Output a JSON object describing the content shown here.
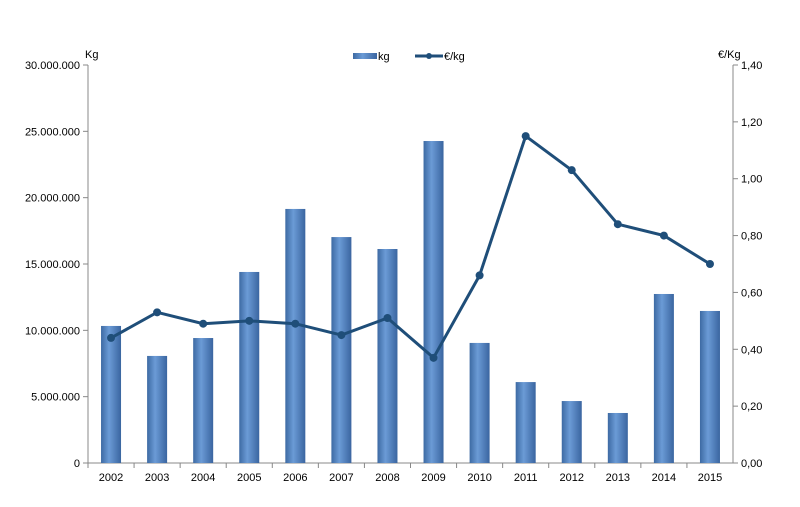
{
  "chart_data": {
    "type": "bar+line",
    "title": "",
    "categories": [
      "2002",
      "2003",
      "2004",
      "2005",
      "2006",
      "2007",
      "2008",
      "2009",
      "2010",
      "2011",
      "2012",
      "2013",
      "2014",
      "2015"
    ],
    "series": [
      {
        "name": "kg",
        "type": "bar",
        "axis": "left",
        "color": "#4f81bd",
        "values": [
          10330000,
          8070000,
          9420000,
          14400000,
          19150000,
          17030000,
          16130000,
          24270000,
          9050000,
          6100000,
          4670000,
          3770000,
          12740000,
          11460000
        ]
      },
      {
        "name": "€/kg",
        "type": "line",
        "axis": "right",
        "color": "#1f4e79",
        "values": [
          0.44,
          0.53,
          0.49,
          0.5,
          0.49,
          0.45,
          0.51,
          0.37,
          0.66,
          1.15,
          1.03,
          0.84,
          0.8,
          0.7
        ]
      }
    ],
    "ylabel": "Kg",
    "y2label": "€/Kg",
    "ylim": [
      0,
      30000000
    ],
    "y2lim": [
      0,
      1.4
    ],
    "yticks": [
      "0",
      "5.000.000",
      "10.000.000",
      "15.000.000",
      "20.000.000",
      "25.000.000",
      "30.000.000"
    ],
    "y2ticks": [
      "0,00",
      "0,20",
      "0,40",
      "0,60",
      "0,80",
      "1,00",
      "1,20",
      "1,40"
    ],
    "legend": "top-center",
    "grid": false
  }
}
